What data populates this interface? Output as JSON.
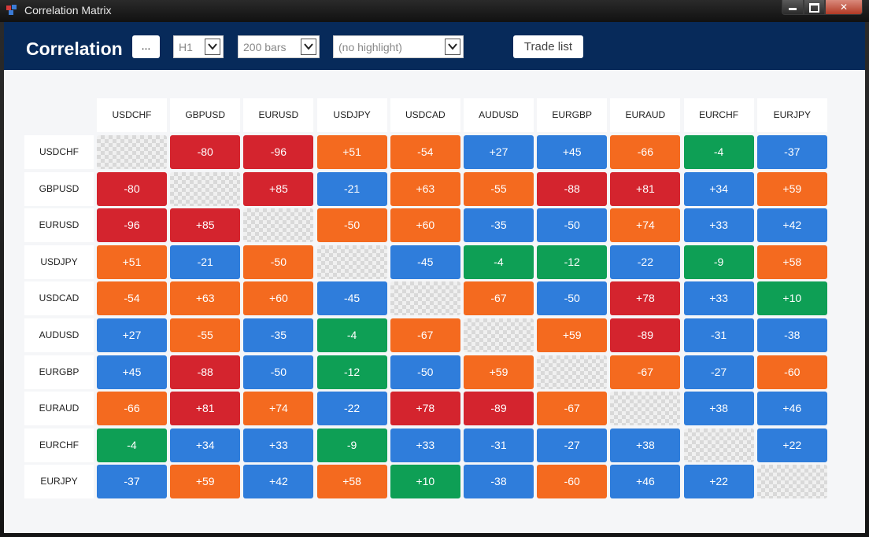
{
  "window": {
    "title": "Correlation Matrix"
  },
  "header": {
    "title": "Correlation",
    "more_button": "...",
    "timeframe": "H1",
    "bars": "200 bars",
    "highlight": "(no highlight)",
    "trade_list_button": "Trade list"
  },
  "colors": {
    "red": "#d4242e",
    "orange": "#f46a1f",
    "blue": "#2f7ddb",
    "green": "#0e9f55",
    "header_bg": "#072a5a"
  },
  "matrix": {
    "symbols": [
      "USDCHF",
      "GBPUSD",
      "EURUSD",
      "USDJPY",
      "USDCAD",
      "AUDUSD",
      "EURGBP",
      "EURAUD",
      "EURCHF",
      "EURJPY"
    ],
    "rows": [
      [
        null,
        "-80",
        "-96",
        "+51",
        "-54",
        "+27",
        "+45",
        "-66",
        "-4",
        "-37"
      ],
      [
        "-80",
        null,
        "+85",
        "-21",
        "+63",
        "-55",
        "-88",
        "+81",
        "+34",
        "+59"
      ],
      [
        "-96",
        "+85",
        null,
        "-50",
        "+60",
        "-35",
        "-50",
        "+74",
        "+33",
        "+42"
      ],
      [
        "+51",
        "-21",
        "-50",
        null,
        "-45",
        "-4",
        "-12",
        "-22",
        "-9",
        "+58"
      ],
      [
        "-54",
        "+63",
        "+60",
        "-45",
        null,
        "-67",
        "-50",
        "+78",
        "+33",
        "+10"
      ],
      [
        "+27",
        "-55",
        "-35",
        "-4",
        "-67",
        null,
        "+59",
        "-89",
        "-31",
        "-38"
      ],
      [
        "+45",
        "-88",
        "-50",
        "-12",
        "-50",
        "+59",
        null,
        "-67",
        "-27",
        "-60"
      ],
      [
        "-66",
        "+81",
        "+74",
        "-22",
        "+78",
        "-89",
        "-67",
        null,
        "+38",
        "+46"
      ],
      [
        "-4",
        "+34",
        "+33",
        "-9",
        "+33",
        "-31",
        "-27",
        "+38",
        null,
        "+22"
      ],
      [
        "-37",
        "+59",
        "+42",
        "+58",
        "+10",
        "-38",
        "-60",
        "+46",
        "+22",
        null
      ]
    ],
    "cell_colors": [
      [
        null,
        "red",
        "red",
        "orange",
        "orange",
        "blue",
        "blue",
        "orange",
        "green",
        "blue"
      ],
      [
        "red",
        null,
        "red",
        "blue",
        "orange",
        "orange",
        "red",
        "red",
        "blue",
        "orange"
      ],
      [
        "red",
        "red",
        null,
        "orange",
        "orange",
        "blue",
        "blue",
        "orange",
        "blue",
        "blue"
      ],
      [
        "orange",
        "blue",
        "orange",
        null,
        "blue",
        "green",
        "green",
        "blue",
        "green",
        "orange"
      ],
      [
        "orange",
        "orange",
        "orange",
        "blue",
        null,
        "orange",
        "blue",
        "red",
        "blue",
        "green"
      ],
      [
        "blue",
        "orange",
        "blue",
        "green",
        "orange",
        null,
        "orange",
        "red",
        "blue",
        "blue"
      ],
      [
        "blue",
        "red",
        "blue",
        "green",
        "blue",
        "orange",
        null,
        "orange",
        "blue",
        "orange"
      ],
      [
        "orange",
        "red",
        "orange",
        "blue",
        "red",
        "red",
        "orange",
        null,
        "blue",
        "blue"
      ],
      [
        "green",
        "blue",
        "blue",
        "green",
        "blue",
        "blue",
        "blue",
        "blue",
        null,
        "blue"
      ],
      [
        "blue",
        "orange",
        "blue",
        "orange",
        "green",
        "blue",
        "orange",
        "blue",
        "blue",
        null
      ]
    ]
  }
}
